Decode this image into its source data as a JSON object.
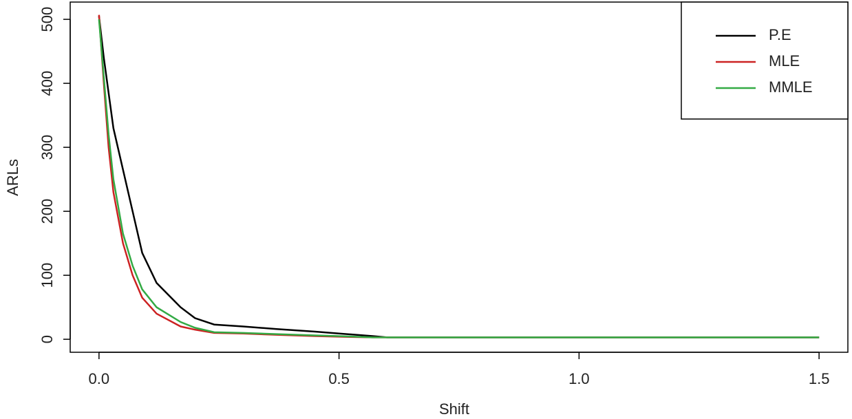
{
  "chart_data": {
    "type": "line",
    "x_label": "Shift",
    "y_label": "ARLs",
    "x": [
      0,
      0.01,
      0.02,
      0.03,
      0.05,
      0.07,
      0.09,
      0.12,
      0.17,
      0.2,
      0.24,
      0.3,
      0.37,
      0.45,
      0.5,
      0.57,
      0.6,
      1.5
    ],
    "series": [
      {
        "name": "P.E",
        "color": "#000000",
        "values": [
          505,
          440,
          385,
          330,
          265,
          200,
          135,
          88,
          50,
          33,
          23,
          20,
          16,
          12,
          9,
          5,
          3,
          3
        ]
      },
      {
        "name": "MLE",
        "color": "#cc2222",
        "values": [
          507,
          400,
          300,
          230,
          150,
          100,
          65,
          40,
          20,
          15,
          10,
          9,
          7,
          5,
          4,
          3,
          3,
          3
        ]
      },
      {
        "name": "MMLE",
        "color": "#33aa44",
        "values": [
          500,
          410,
          320,
          250,
          165,
          115,
          78,
          50,
          27,
          18,
          11,
          10,
          8,
          6,
          5,
          3,
          3,
          3
        ]
      }
    ],
    "xlim": [
      -0.06,
      1.56
    ],
    "ylim": [
      -20.3,
      527
    ],
    "xticks": [
      {
        "value": 0,
        "label": "0.0"
      },
      0.5,
      {
        "value": 1,
        "label": "1.0"
      },
      1.5
    ],
    "yticks": [
      0,
      100,
      200,
      300,
      400,
      500
    ],
    "legend": "top-right"
  }
}
